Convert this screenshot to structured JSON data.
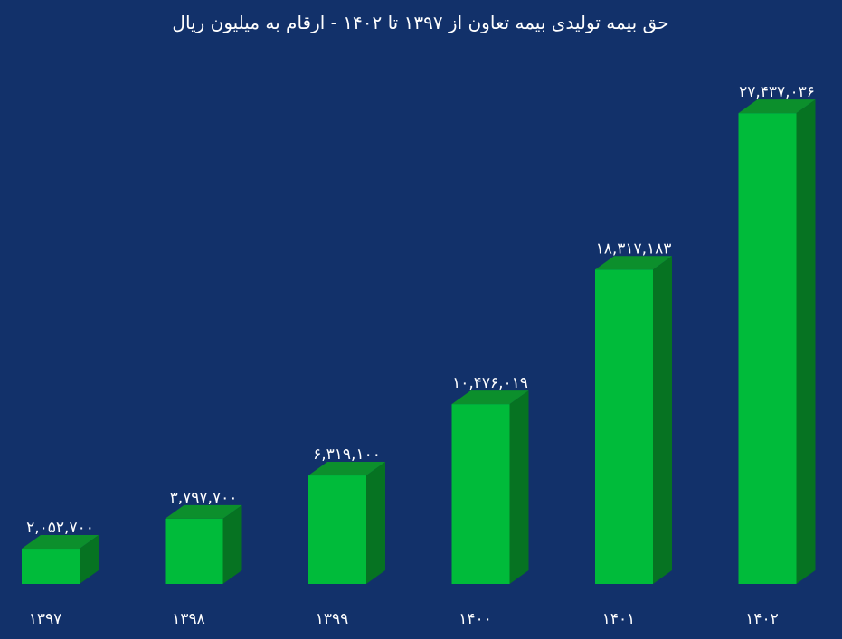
{
  "chart_data": {
    "type": "bar",
    "title": "حق بیمه تولیدی بیمه تعاون از ۱۳۹۷ تا ۱۴۰۲ - ارقام به میلیون ریال",
    "xlabel": "",
    "ylabel": "",
    "categories": [
      "۱۳۹۷",
      "۱۳۹۸",
      "۱۳۹۹",
      "۱۴۰۰",
      "۱۴۰۱",
      "۱۴۰۲"
    ],
    "values": [
      2052700,
      3797700,
      6319100,
      10476019,
      18317183,
      27437036
    ],
    "value_labels": [
      "۲,۰۵۲,۷۰۰",
      "۳,۷۹۷,۷۰۰",
      "۶,۳۱۹,۱۰۰",
      "۱۰,۴۷۶,۰۱۹",
      "۱۸,۳۱۷,۱۸۳",
      "۲۷,۴۳۷,۰۳۶"
    ],
    "ylim": [
      0,
      28500000
    ],
    "grid": false,
    "legend": "none",
    "colors": {
      "background": "#12316a",
      "bar_front": "#00bb3a",
      "bar_top": "#0c8f2c",
      "bar_side": "#067322",
      "text": "#ffffff"
    }
  }
}
